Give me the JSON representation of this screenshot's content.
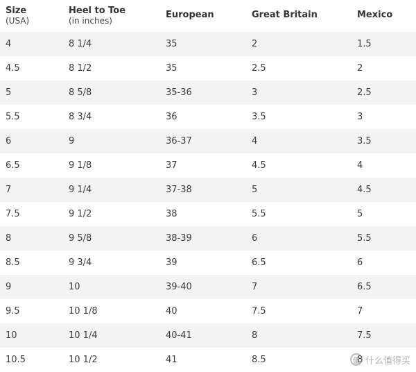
{
  "header": {
    "size_title": "Size",
    "size_sub": "(USA)",
    "heel_title": "Heel to Toe",
    "heel_sub": "(in inches)",
    "european": "European",
    "great_britain": "Great Britain",
    "mexico": "Mexico"
  },
  "rows": [
    [
      "4",
      "8 1/4",
      "35",
      "2",
      "1.5"
    ],
    [
      "4.5",
      "8 1/2",
      "35",
      "2.5",
      "2"
    ],
    [
      "5",
      "8 5/8",
      "35-36",
      "3",
      "2.5"
    ],
    [
      "5.5",
      "8 3/4",
      "36",
      "3.5",
      "3"
    ],
    [
      "6",
      "9",
      "36-37",
      "4",
      "3.5"
    ],
    [
      "6.5",
      "9 1/8",
      "37",
      "4.5",
      "4"
    ],
    [
      "7",
      "9 1/4",
      "37-38",
      "5",
      "4.5"
    ],
    [
      "7.5",
      "9 1/2",
      "38",
      "5.5",
      "5"
    ],
    [
      "8",
      "9 5/8",
      "38-39",
      "6",
      "5.5"
    ],
    [
      "8.5",
      "9 3/4",
      "39",
      "6.5",
      "6"
    ],
    [
      "9",
      "10",
      "39-40",
      "7",
      "6.5"
    ],
    [
      "9.5",
      "10 1/8",
      "40",
      "7.5",
      "7"
    ],
    [
      "10",
      "10 1/4",
      "40-41",
      "8",
      "7.5"
    ],
    [
      "10.5",
      "10 1/2",
      "41",
      "8.5",
      "8"
    ]
  ],
  "watermark": {
    "icon": "值",
    "text": "什么值得买"
  },
  "colors": {
    "row_stripe": "#f3f3f3",
    "text": "#3c3c3c"
  }
}
